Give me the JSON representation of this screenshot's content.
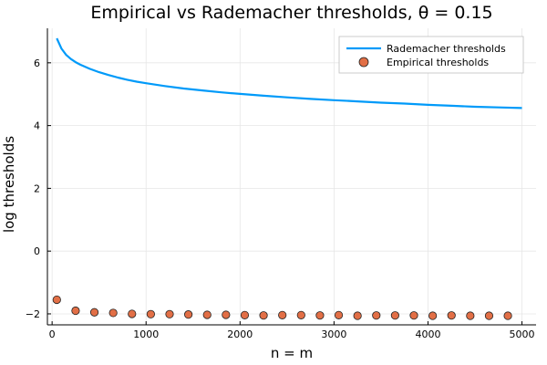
{
  "chart_data": {
    "type": "line",
    "title": "Empirical vs Rademacher thresholds, θ = 0.15",
    "xlabel": "n = m",
    "ylabel": "log thresholds",
    "xlim": [
      -50,
      5150
    ],
    "ylim": [
      -2.35,
      7.1
    ],
    "xticks": [
      0,
      1000,
      2000,
      3000,
      4000,
      5000
    ],
    "xtick_labels": [
      "0",
      "1000",
      "2000",
      "3000",
      "4000",
      "5000"
    ],
    "yticks": [
      -2,
      0,
      2,
      4,
      6
    ],
    "ytick_labels": [
      "−2",
      "0",
      "2",
      "4",
      "6"
    ],
    "grid": true,
    "legend_position": "top-right",
    "series": [
      {
        "name": "Rademacher thresholds",
        "kind": "line",
        "color": "#009af9",
        "x": [
          50,
          100,
          150,
          200,
          250,
          300,
          400,
          500,
          600,
          700,
          800,
          900,
          1000,
          1200,
          1400,
          1600,
          1800,
          2000,
          2250,
          2500,
          2750,
          3000,
          3250,
          3500,
          3750,
          4000,
          4250,
          4500,
          4750,
          5000
        ],
        "y": [
          6.78,
          6.45,
          6.25,
          6.12,
          6.02,
          5.94,
          5.81,
          5.7,
          5.61,
          5.53,
          5.46,
          5.4,
          5.35,
          5.26,
          5.18,
          5.12,
          5.06,
          5.01,
          4.95,
          4.9,
          4.85,
          4.81,
          4.77,
          4.73,
          4.7,
          4.66,
          4.63,
          4.6,
          4.58,
          4.56
        ]
      },
      {
        "name": "Empirical thresholds",
        "kind": "scatter",
        "color": "#e26f46",
        "x": [
          50,
          250,
          450,
          650,
          850,
          1050,
          1250,
          1450,
          1650,
          1850,
          2050,
          2250,
          2450,
          2650,
          2850,
          3050,
          3250,
          3450,
          3650,
          3850,
          4050,
          4250,
          4450,
          4650,
          4850
        ],
        "y": [
          -1.55,
          -1.9,
          -1.95,
          -1.97,
          -2.0,
          -2.01,
          -2.01,
          -2.02,
          -2.03,
          -2.03,
          -2.04,
          -2.05,
          -2.04,
          -2.04,
          -2.05,
          -2.04,
          -2.06,
          -2.05,
          -2.05,
          -2.05,
          -2.06,
          -2.05,
          -2.06,
          -2.06,
          -2.06
        ]
      }
    ]
  }
}
